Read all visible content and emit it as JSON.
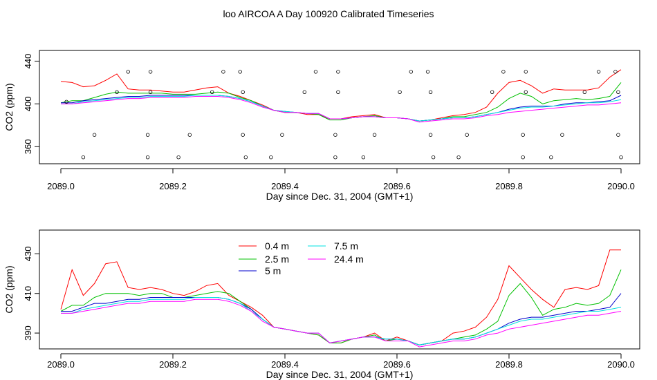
{
  "figure": {
    "title": "loo AIRCOA A  Day 100920  Calibrated Timeseries"
  },
  "chart_data": [
    {
      "type": "line",
      "xlabel": "Day since Dec. 31, 2004 (GMT+1)",
      "ylabel": "CO2 (ppm)",
      "xlim": [
        2089.0,
        2090.0
      ],
      "ylim": [
        344,
        450
      ],
      "xticks": [
        2089.0,
        2089.2,
        2089.4,
        2089.6,
        2089.8,
        2090.0
      ],
      "xtick_labels": [
        "2089.0",
        "2089.2",
        "2089.4",
        "2089.6",
        "2089.8",
        "2090.0"
      ],
      "yticks": [
        360,
        400,
        440
      ],
      "ytick_labels": [
        "360",
        "400",
        "440"
      ],
      "grid": false,
      "legend": null,
      "x": [
        2089.0,
        2089.02,
        2089.04,
        2089.06,
        2089.08,
        2089.1,
        2089.12,
        2089.14,
        2089.16,
        2089.18,
        2089.2,
        2089.22,
        2089.24,
        2089.26,
        2089.28,
        2089.3,
        2089.32,
        2089.34,
        2089.36,
        2089.38,
        2089.4,
        2089.42,
        2089.44,
        2089.46,
        2089.48,
        2089.5,
        2089.52,
        2089.54,
        2089.56,
        2089.58,
        2089.6,
        2089.62,
        2089.64,
        2089.66,
        2089.68,
        2089.7,
        2089.72,
        2089.74,
        2089.76,
        2089.78,
        2089.8,
        2089.82,
        2089.84,
        2089.86,
        2089.88,
        2089.9,
        2089.92,
        2089.94,
        2089.96,
        2089.98,
        2090.0
      ],
      "series": [
        {
          "name": "0.4 m",
          "color": "#ff0000",
          "values": [
            421,
            420,
            416,
            417,
            422,
            428,
            414,
            413,
            413,
            412,
            411,
            411,
            413,
            415,
            416,
            410,
            407,
            403,
            399,
            394,
            392,
            392,
            390,
            390,
            386,
            386,
            388,
            389,
            390,
            387,
            387,
            386,
            384,
            385,
            387,
            389,
            390,
            392,
            397,
            410,
            420,
            422,
            417,
            410,
            414,
            413,
            413,
            413,
            415,
            425,
            432
          ]
        },
        {
          "name": "2.5 m",
          "color": "#00c000",
          "values": [
            401,
            403,
            403,
            406,
            409,
            411,
            410,
            410,
            410,
            410,
            409,
            409,
            409,
            410,
            411,
            410,
            406,
            403,
            398,
            394,
            392,
            392,
            391,
            390,
            385,
            385,
            387,
            388,
            389,
            387,
            387,
            386,
            384,
            385,
            386,
            388,
            388,
            390,
            392,
            397,
            405,
            410,
            407,
            400,
            403,
            404,
            405,
            404,
            405,
            407,
            420
          ]
        },
        {
          "name": "5 m",
          "color": "#0000cc",
          "values": [
            401,
            401,
            403,
            404,
            405,
            406,
            407,
            407,
            408,
            408,
            408,
            408,
            408,
            408,
            408,
            407,
            405,
            402,
            398,
            394,
            393,
            392,
            391,
            391,
            386,
            386,
            387,
            388,
            388,
            387,
            387,
            386,
            384,
            385,
            386,
            387,
            387,
            388,
            390,
            392,
            395,
            397,
            398,
            398,
            398,
            400,
            401,
            401,
            402,
            403,
            408
          ]
        },
        {
          "name": "7.5 m",
          "color": "#00e0e0",
          "values": [
            400,
            400,
            402,
            403,
            404,
            405,
            406,
            406,
            407,
            407,
            407,
            407,
            408,
            408,
            408,
            407,
            405,
            402,
            398,
            394,
            393,
            392,
            391,
            391,
            386,
            386,
            387,
            388,
            388,
            387,
            387,
            386,
            384,
            385,
            386,
            387,
            387,
            388,
            390,
            392,
            394,
            396,
            397,
            397,
            398,
            399,
            400,
            401,
            401,
            402,
            404
          ]
        },
        {
          "name": "24.4 m",
          "color": "#ff00ff",
          "values": [
            400,
            400,
            401,
            402,
            403,
            404,
            405,
            405,
            406,
            406,
            406,
            406,
            407,
            407,
            407,
            406,
            404,
            401,
            397,
            394,
            392,
            392,
            391,
            391,
            386,
            386,
            387,
            388,
            388,
            387,
            387,
            386,
            383,
            384,
            385,
            386,
            386,
            387,
            389,
            390,
            392,
            393,
            394,
            395,
            396,
            397,
            398,
            399,
            399,
            400,
            401
          ]
        }
      ],
      "markers": {
        "shape": "open-circle",
        "points": [
          [
            2089.01,
            402
          ],
          [
            2089.04,
            350
          ],
          [
            2089.06,
            371
          ],
          [
            2089.1,
            411
          ],
          [
            2089.12,
            430
          ],
          [
            2089.155,
            350
          ],
          [
            2089.155,
            371
          ],
          [
            2089.16,
            411
          ],
          [
            2089.16,
            430
          ],
          [
            2089.21,
            350
          ],
          [
            2089.23,
            371
          ],
          [
            2089.27,
            411
          ],
          [
            2089.29,
            430
          ],
          [
            2089.32,
            430
          ],
          [
            2089.325,
            411
          ],
          [
            2089.325,
            371
          ],
          [
            2089.33,
            350
          ],
          [
            2089.375,
            350
          ],
          [
            2089.395,
            371
          ],
          [
            2089.435,
            411
          ],
          [
            2089.455,
            430
          ],
          [
            2089.49,
            350
          ],
          [
            2089.49,
            371
          ],
          [
            2089.495,
            411
          ],
          [
            2089.495,
            430
          ],
          [
            2089.54,
            350
          ],
          [
            2089.56,
            371
          ],
          [
            2089.605,
            411
          ],
          [
            2089.625,
            430
          ],
          [
            2089.655,
            430
          ],
          [
            2089.66,
            411
          ],
          [
            2089.66,
            371
          ],
          [
            2089.665,
            350
          ],
          [
            2089.71,
            350
          ],
          [
            2089.725,
            371
          ],
          [
            2089.77,
            411
          ],
          [
            2089.79,
            430
          ],
          [
            2089.825,
            350
          ],
          [
            2089.825,
            371
          ],
          [
            2089.83,
            411
          ],
          [
            2089.83,
            430
          ],
          [
            2089.875,
            350
          ],
          [
            2089.895,
            371
          ],
          [
            2089.935,
            411
          ],
          [
            2089.96,
            430
          ],
          [
            2089.99,
            430
          ],
          [
            2089.995,
            411
          ],
          [
            2089.995,
            371
          ],
          [
            2090.0,
            350
          ]
        ]
      }
    },
    {
      "type": "line",
      "xlabel": "Day since Dec. 31, 2004 (GMT+1)",
      "ylabel": "CO2 (ppm)",
      "xlim": [
        2089.0,
        2090.0
      ],
      "ylim": [
        382,
        442
      ],
      "xticks": [
        2089.0,
        2089.2,
        2089.4,
        2089.6,
        2089.8,
        2090.0
      ],
      "xtick_labels": [
        "2089.0",
        "2089.2",
        "2089.4",
        "2089.6",
        "2089.8",
        "2090.0"
      ],
      "yticks": [
        390,
        410,
        430
      ],
      "ytick_labels": [
        "390",
        "410",
        "430"
      ],
      "grid": false,
      "legend": "top-left",
      "legend_columns": 2,
      "x": [
        2089.0,
        2089.02,
        2089.04,
        2089.06,
        2089.08,
        2089.1,
        2089.12,
        2089.14,
        2089.16,
        2089.18,
        2089.2,
        2089.22,
        2089.24,
        2089.26,
        2089.28,
        2089.3,
        2089.32,
        2089.34,
        2089.36,
        2089.38,
        2089.4,
        2089.42,
        2089.44,
        2089.46,
        2089.48,
        2089.5,
        2089.52,
        2089.54,
        2089.56,
        2089.58,
        2089.6,
        2089.62,
        2089.64,
        2089.66,
        2089.68,
        2089.7,
        2089.72,
        2089.74,
        2089.76,
        2089.78,
        2089.8,
        2089.82,
        2089.84,
        2089.86,
        2089.88,
        2089.9,
        2089.92,
        2089.94,
        2089.96,
        2089.98,
        2090.0
      ],
      "series": [
        {
          "name": "0.4 m",
          "color": "#ff0000",
          "values": [
            402,
            422,
            409,
            415,
            425,
            426,
            413,
            412,
            413,
            412,
            410,
            409,
            411,
            414,
            415,
            409,
            406,
            403,
            399,
            393,
            392,
            391,
            390,
            389,
            385,
            385,
            387,
            388,
            390,
            386,
            388,
            386,
            384,
            385,
            386,
            390,
            391,
            393,
            398,
            407,
            424,
            418,
            412,
            407,
            403,
            412,
            413,
            412,
            414,
            432,
            432
          ]
        },
        {
          "name": "2.5 m",
          "color": "#00c000",
          "values": [
            401,
            404,
            404,
            408,
            410,
            410,
            410,
            409,
            410,
            410,
            408,
            408,
            409,
            410,
            411,
            410,
            406,
            402,
            397,
            393,
            392,
            391,
            390,
            389,
            385,
            385,
            387,
            388,
            389,
            386,
            387,
            386,
            384,
            385,
            386,
            387,
            388,
            389,
            392,
            396,
            409,
            415,
            408,
            399,
            402,
            403,
            405,
            404,
            405,
            409,
            422
          ]
        },
        {
          "name": "5 m",
          "color": "#0000cc",
          "values": [
            401,
            401,
            403,
            405,
            405,
            406,
            407,
            407,
            408,
            408,
            408,
            408,
            408,
            408,
            408,
            407,
            405,
            402,
            397,
            393,
            392,
            391,
            390,
            390,
            385,
            386,
            387,
            388,
            388,
            387,
            387,
            386,
            384,
            385,
            386,
            387,
            387,
            388,
            390,
            392,
            395,
            397,
            398,
            398,
            399,
            400,
            401,
            401,
            402,
            403,
            410
          ]
        },
        {
          "name": "7.5 m",
          "color": "#00e0e0",
          "values": [
            400,
            400,
            402,
            403,
            404,
            405,
            406,
            406,
            407,
            407,
            407,
            407,
            408,
            408,
            408,
            407,
            405,
            401,
            397,
            393,
            392,
            391,
            390,
            390,
            385,
            386,
            387,
            388,
            388,
            387,
            387,
            386,
            384,
            385,
            386,
            387,
            387,
            388,
            390,
            392,
            394,
            396,
            397,
            397,
            398,
            399,
            400,
            401,
            401,
            402,
            403
          ]
        },
        {
          "name": "24.4 m",
          "color": "#ff00ff",
          "values": [
            400,
            400,
            401,
            402,
            403,
            404,
            405,
            405,
            406,
            406,
            406,
            406,
            407,
            407,
            407,
            406,
            404,
            401,
            396,
            393,
            392,
            391,
            390,
            390,
            385,
            386,
            387,
            388,
            388,
            386,
            386,
            386,
            383,
            384,
            385,
            386,
            386,
            387,
            389,
            390,
            392,
            393,
            394,
            395,
            396,
            397,
            398,
            399,
            399,
            400,
            401
          ]
        }
      ]
    }
  ]
}
